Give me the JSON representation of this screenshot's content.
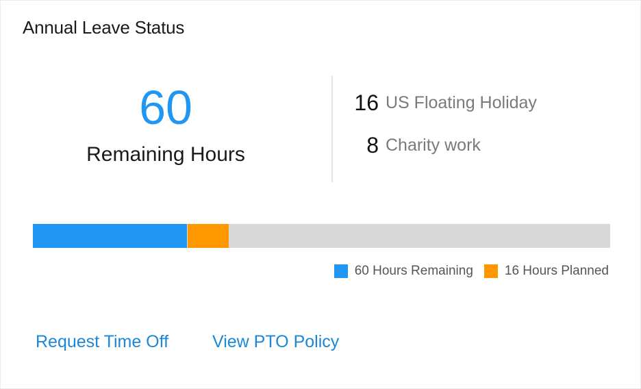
{
  "card": {
    "title": "Annual Leave Status"
  },
  "summary": {
    "remaining_value": "60",
    "remaining_label": "Remaining Hours"
  },
  "details": [
    {
      "value": "16",
      "label": "US Floating Holiday"
    },
    {
      "value": "8",
      "label": "Charity work"
    }
  ],
  "progress": {
    "remaining_fraction": 0.2669,
    "planned_fraction": 0.0712,
    "colors": {
      "remaining": "#2196f3",
      "planned": "#ff9800",
      "track": "#d9d9d9"
    }
  },
  "legend": {
    "remaining_label": "60 Hours Remaining",
    "planned_label": "16 Hours Planned"
  },
  "actions": {
    "request_time_off": "Request Time Off",
    "view_pto_policy": "View PTO Policy"
  },
  "colors": {
    "accent": "#2196f3",
    "link": "#1b87d6"
  }
}
